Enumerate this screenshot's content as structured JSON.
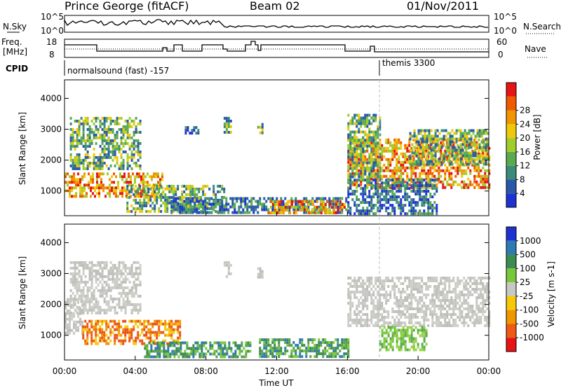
{
  "header": {
    "station": "Prince George (fitACF)",
    "beam": "Beam 02",
    "date": "01/Nov/2011"
  },
  "panel_nsky": {
    "left_label": "N.Sky",
    "right_label": "N.Search",
    "left_ticks": [
      "10^5",
      "10^0"
    ],
    "right_ticks": [
      "10^5",
      "10^0"
    ]
  },
  "panel_freq": {
    "left_label_1": "Freq.",
    "left_label_2": "[MHz]",
    "right_label": "Nave",
    "left_ticks": [
      "18",
      "8"
    ],
    "right_ticks": [
      "60",
      "0"
    ]
  },
  "panel_cpid": {
    "label": "CPID",
    "modes": [
      {
        "name": "normalsound (fast) -157",
        "start_hour": 0
      },
      {
        "name": "themis 3300",
        "start_hour": 18
      }
    ]
  },
  "chart_data": [
    {
      "type": "heatmap",
      "quantity": "Power",
      "ylabel": "Slant Range [km]",
      "yticks": [
        1000,
        2000,
        3000,
        4000
      ],
      "ylim": [
        200,
        4600
      ],
      "xlim_hours": [
        0,
        24
      ],
      "colorbar": {
        "label": "Power [dB]",
        "ticks": [
          "4",
          "8",
          "12",
          "16",
          "20",
          "24",
          "28"
        ],
        "colors": [
          "#1e32d2",
          "#2858a8",
          "#3c8a78",
          "#5aaa50",
          "#a0cc2c",
          "#f0c80a",
          "#f09600",
          "#f05a00",
          "#e61414"
        ]
      },
      "regions": [
        {
          "t": [
            0.0,
            5.5
          ],
          "r": [
            800,
            1600
          ],
          "level": "high"
        },
        {
          "t": [
            0.3,
            4.3
          ],
          "r": [
            1700,
            3400
          ],
          "level": "mid"
        },
        {
          "t": [
            3.5,
            9.0
          ],
          "r": [
            300,
            1200
          ],
          "level": "mid"
        },
        {
          "t": [
            6.0,
            16.0
          ],
          "r": [
            300,
            800
          ],
          "level": "low"
        },
        {
          "t": [
            11.5,
            15.8
          ],
          "r": [
            300,
            700
          ],
          "level": "high"
        },
        {
          "t": [
            6.8,
            7.6
          ],
          "r": [
            2900,
            3100
          ],
          "level": "low"
        },
        {
          "t": [
            9.0,
            9.4
          ],
          "r": [
            2900,
            3400
          ],
          "level": "mid"
        },
        {
          "t": [
            10.9,
            11.2
          ],
          "r": [
            2900,
            3200
          ],
          "level": "mid"
        },
        {
          "t": [
            16.0,
            24.0
          ],
          "r": [
            1100,
            2700
          ],
          "level": "high"
        },
        {
          "t": [
            16.0,
            21.0
          ],
          "r": [
            300,
            1400
          ],
          "level": "low"
        },
        {
          "t": [
            16.0,
            17.8
          ],
          "r": [
            1500,
            3500
          ],
          "level": "mid"
        },
        {
          "t": [
            19.5,
            24.0
          ],
          "r": [
            1900,
            3000
          ],
          "level": "mid"
        }
      ]
    },
    {
      "type": "heatmap",
      "quantity": "Velocity",
      "ylabel": "Slant Range [km]",
      "yticks": [
        1000,
        2000,
        3000,
        4000
      ],
      "ylim": [
        200,
        4600
      ],
      "xlim_hours": [
        0,
        24
      ],
      "xlabel": "Time UT",
      "xticks": [
        "00:00",
        "04:00",
        "08:00",
        "12:00",
        "16:00",
        "20:00",
        "00:00"
      ],
      "colorbar": {
        "label": "Velocity [m s-1]",
        "ticks": [
          "1000",
          "500",
          "100",
          "25",
          "-25",
          "-100",
          "-500",
          "-1000"
        ],
        "colors": [
          "#1e32d2",
          "#2f7ab4",
          "#3c8c50",
          "#78c83c",
          "#c8c8c3",
          "#f5c80a",
          "#f09600",
          "#f05a14",
          "#e61414"
        ]
      },
      "regions": [
        {
          "t": [
            0.0,
            1.0
          ],
          "r": [
            1100,
            2200
          ],
          "level": "gray"
        },
        {
          "t": [
            0.3,
            4.3
          ],
          "r": [
            1700,
            3400
          ],
          "level": "gray"
        },
        {
          "t": [
            1.0,
            6.5
          ],
          "r": [
            700,
            1500
          ],
          "level": "orange"
        },
        {
          "t": [
            4.5,
            10.5
          ],
          "r": [
            300,
            800
          ],
          "level": "green"
        },
        {
          "t": [
            9.0,
            9.4
          ],
          "r": [
            2900,
            3400
          ],
          "level": "gray"
        },
        {
          "t": [
            10.9,
            11.2
          ],
          "r": [
            2900,
            3200
          ],
          "level": "gray"
        },
        {
          "t": [
            11.0,
            16.0
          ],
          "r": [
            300,
            900
          ],
          "level": "green"
        },
        {
          "t": [
            16.0,
            24.0
          ],
          "r": [
            1300,
            2900
          ],
          "level": "gray"
        },
        {
          "t": [
            17.8,
            20.5
          ],
          "r": [
            500,
            1300
          ],
          "level": "lightgreen"
        }
      ]
    }
  ]
}
